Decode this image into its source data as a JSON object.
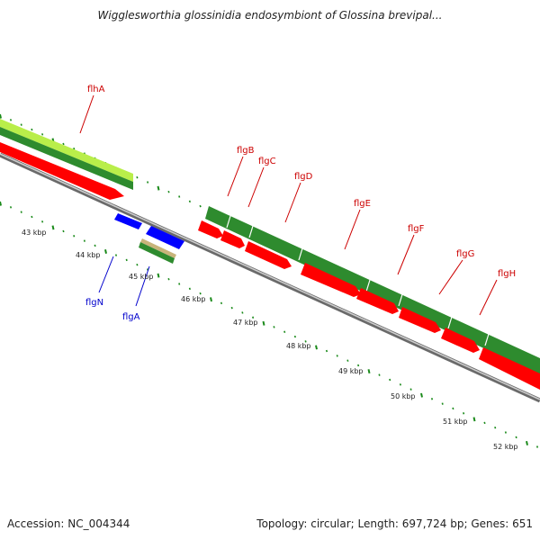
{
  "title": "Wigglesworthia glossinidia endosymbiont of Glossina brevipal...",
  "footer": {
    "accession": "Accession: NC_004344",
    "summary": "Topology: circular; Length: 697,724 bp; Genes: 651"
  },
  "colors": {
    "backbone": "#8a8a8a",
    "forward_cds": "#2e8b2e",
    "rna_feature": "#ff0000",
    "reverse_cds": "#0000ff",
    "yellow_green": "#b0e040",
    "tan": "#c8b47a",
    "tick_green": "#1a8a1a",
    "label_forward": "#cc0000",
    "label_reverse": "#0000cc"
  },
  "kbp_labels": [
    "43 kbp",
    "44 kbp",
    "45 kbp",
    "46 kbp",
    "47 kbp",
    "48 kbp",
    "49 kbp",
    "50 kbp",
    "51 kbp",
    "52 kbp"
  ],
  "genes_forward": [
    "flhA",
    "flgB",
    "flgC",
    "flgD",
    "flgE",
    "flgF",
    "flgG",
    "flgH"
  ],
  "genes_reverse": [
    "flgN",
    "flgA"
  ]
}
